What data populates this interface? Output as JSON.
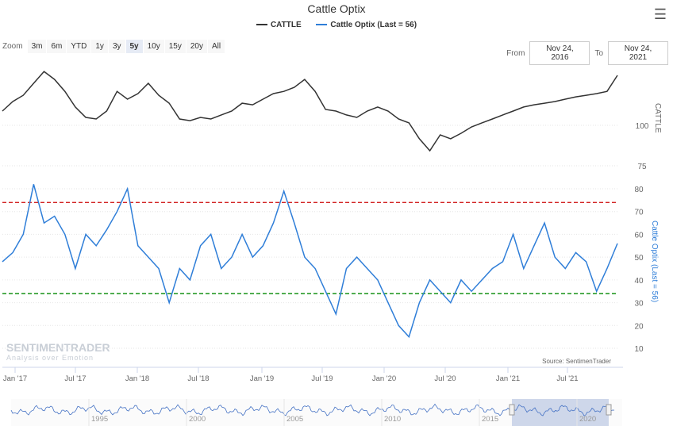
{
  "title": "Cattle Optix",
  "legend": [
    {
      "label": "CATTLE",
      "color": "#333333"
    },
    {
      "label": "Cattle Optix (Last = 56)",
      "color": "#2f7ed8"
    }
  ],
  "zoom": {
    "label": "Zoom",
    "buttons": [
      "3m",
      "6m",
      "YTD",
      "1y",
      "3y",
      "5y",
      "10y",
      "15y",
      "20y",
      "All"
    ],
    "selected": "5y"
  },
  "range": {
    "from_label": "From",
    "from": "Nov 24, 2016",
    "to_label": "To",
    "to": "Nov 24, 2021"
  },
  "source": "Source: SentimenTrader",
  "logo": {
    "name": "SENTIMENTRADER",
    "tagline": "Analysis over Emotion"
  },
  "navigator_labels": [
    "1995",
    "2000",
    "2005",
    "2010",
    "2015",
    "2020"
  ],
  "chart_data": {
    "type": "line",
    "x_ticks": [
      "Jan '17",
      "Jul '17",
      "Jan '18",
      "Jul '18",
      "Jan '19",
      "Jul '19",
      "Jan '20",
      "Jul '20",
      "Jan '21",
      "Jul '21"
    ],
    "x_start": "Nov 2016",
    "x_end": "Nov 2021",
    "x_frequency": "monthly",
    "upper": {
      "name": "CATTLE",
      "axis_label": "CATTLE",
      "yticks": [
        100,
        75
      ],
      "color": "#333333",
      "values": [
        108.8,
        114.7,
        118.6,
        126,
        133.3,
        128.4,
        121,
        111.3,
        104.9,
        103.9,
        108.8,
        121,
        116.2,
        119.6,
        126,
        118.6,
        113.7,
        103.9,
        102.9,
        104.9,
        103.9,
        106.4,
        108.8,
        113.7,
        112.7,
        116.2,
        119.6,
        121,
        123.5,
        128.4,
        121,
        109.8,
        108.8,
        106.4,
        104.9,
        108.8,
        111.3,
        108.8,
        103.9,
        101.5,
        91.7,
        84.3,
        94.1,
        91.7,
        95.1,
        99,
        101.5,
        103.9,
        106.4,
        108.8,
        111.3,
        112.7,
        113.7,
        114.7,
        116.2,
        117.6,
        118.6,
        119.6,
        121,
        130.9
      ]
    },
    "lower": {
      "name": "Cattle Optix",
      "axis_label": "Cattle Optix (Last = 56)",
      "yticks": [
        80,
        70,
        60,
        50,
        40,
        30,
        20,
        10
      ],
      "ymin": 10,
      "ymax": 80,
      "color": "#2f7ed8",
      "values": [
        48,
        52,
        60,
        82,
        65,
        68,
        60,
        45,
        60,
        55,
        62,
        70,
        80,
        55,
        50,
        45,
        30,
        45,
        40,
        55,
        60,
        45,
        50,
        60,
        50,
        55,
        65,
        79,
        65,
        50,
        45,
        35,
        25,
        45,
        50,
        45,
        40,
        30,
        20,
        15,
        30,
        40,
        35,
        30,
        40,
        35,
        40,
        45,
        48,
        60,
        45,
        55,
        65,
        50,
        45,
        52,
        48,
        35,
        45,
        56
      ],
      "upper_threshold": 74,
      "lower_threshold": 34
    }
  }
}
